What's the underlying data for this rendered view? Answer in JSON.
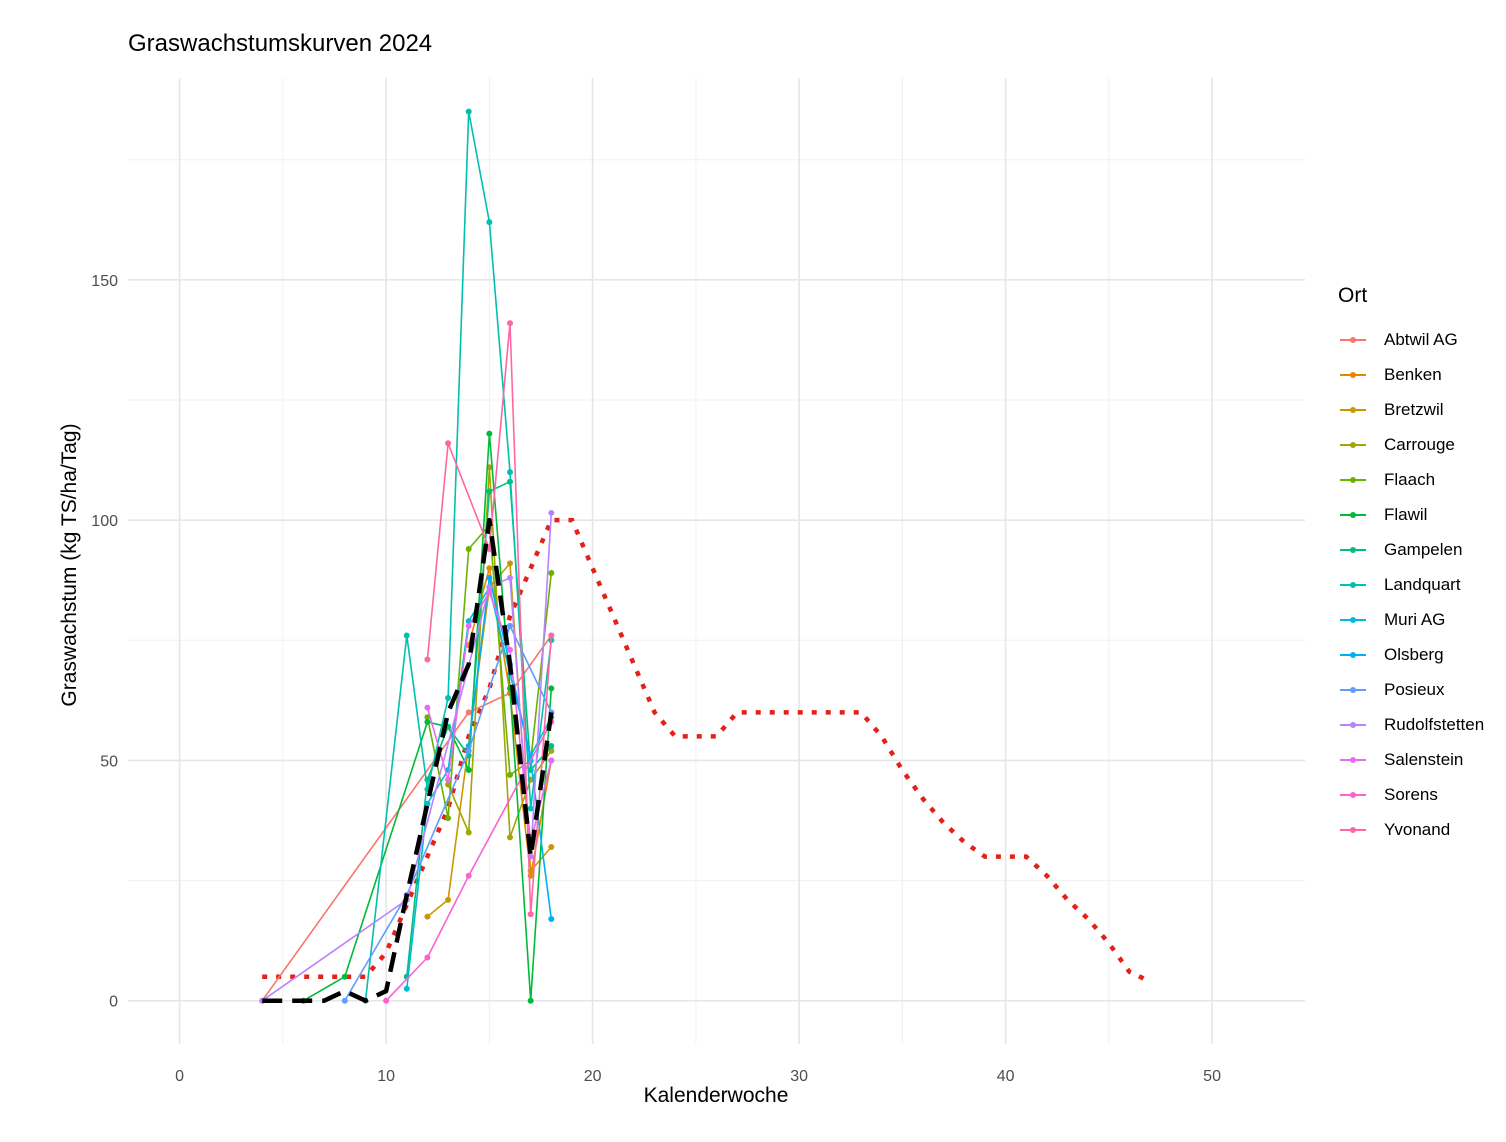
{
  "chart_data": {
    "type": "line",
    "title": "Graswachstumskurven 2024",
    "xlabel": "Kalenderwoche",
    "ylabel": "Graswachstum (kg TS/ha/Tag)",
    "xlim": [
      -2.5,
      54.5
    ],
    "ylim": [
      -9,
      192
    ],
    "x_ticks": [
      0,
      10,
      20,
      30,
      40,
      50
    ],
    "y_ticks": [
      0,
      50,
      100,
      150
    ],
    "grid": true,
    "legend_title": "Ort",
    "legend_position": "right",
    "series": [
      {
        "name": "Abtwil AG",
        "color": "#F8766D",
        "x": [
          4,
          14,
          16,
          18
        ],
        "y": [
          0,
          60,
          64,
          76
        ]
      },
      {
        "name": "Benken",
        "color": "#E58700",
        "x": [
          14,
          15,
          16,
          17,
          18
        ],
        "y": [
          74,
          90,
          64,
          26,
          50
        ]
      },
      {
        "name": "Bretzwil",
        "color": "#C99800",
        "x": [
          12,
          13,
          15,
          16,
          17,
          18
        ],
        "y": [
          17.5,
          21,
          86,
          91,
          27,
          32
        ]
      },
      {
        "name": "Carrouge",
        "color": "#A3A500",
        "x": [
          13,
          14,
          15,
          16,
          17,
          18
        ],
        "y": [
          45,
          35,
          111,
          34,
          46,
          52
        ]
      },
      {
        "name": "Flaach",
        "color": "#6BB100",
        "x": [
          12,
          13,
          14,
          15,
          16,
          17,
          18
        ],
        "y": [
          59,
          38,
          94,
          99,
          47,
          50,
          89
        ]
      },
      {
        "name": "Flawil",
        "color": "#00BA38",
        "x": [
          6,
          8,
          12,
          13,
          14,
          15,
          16,
          17,
          18
        ],
        "y": [
          0,
          5,
          58,
          57,
          48,
          118,
          65,
          0,
          65
        ]
      },
      {
        "name": "Gampelen",
        "color": "#00BF7D",
        "x": [
          11,
          12,
          13,
          14,
          15,
          16,
          17,
          18
        ],
        "y": [
          5,
          46,
          57,
          51,
          106,
          108,
          48,
          53
        ]
      },
      {
        "name": "Landquart",
        "color": "#00C0AF",
        "x": [
          9,
          11,
          12,
          13,
          14,
          15,
          16,
          17,
          18
        ],
        "y": [
          0,
          76,
          44,
          63,
          185,
          162,
          110,
          40,
          75
        ]
      },
      {
        "name": "Muri AG",
        "color": "#00BCD8",
        "x": [
          11,
          12,
          13,
          14,
          15,
          16,
          17,
          18
        ],
        "y": [
          2.5,
          41,
          48,
          79,
          86,
          68,
          51,
          59
        ]
      },
      {
        "name": "Olsberg",
        "color": "#00B0F6",
        "x": [
          14,
          15,
          16,
          17,
          18
        ],
        "y": [
          53,
          88,
          70,
          50,
          17
        ]
      },
      {
        "name": "Posieux",
        "color": "#619CFF",
        "x": [
          8,
          11,
          14,
          16,
          18
        ],
        "y": [
          0,
          22,
          52,
          78,
          60
        ]
      },
      {
        "name": "Rudolfstetten",
        "color": "#B983FF",
        "x": [
          4,
          11,
          15,
          16,
          17,
          18
        ],
        "y": [
          0,
          21,
          86,
          88,
          30,
          101.5
        ]
      },
      {
        "name": "Salenstein",
        "color": "#E76BF3",
        "x": [
          12,
          13,
          14,
          15,
          16,
          17,
          18
        ],
        "y": [
          61,
          46,
          78,
          85,
          73,
          33,
          50
        ]
      },
      {
        "name": "Sorens",
        "color": "#FD61D1",
        "x": [
          10,
          12,
          14,
          18
        ],
        "y": [
          0,
          9,
          26,
          58
        ]
      },
      {
        "name": "Yvonand",
        "color": "#FF67A4",
        "x": [
          12,
          13,
          15,
          16,
          17,
          18
        ],
        "y": [
          71,
          116,
          94,
          141,
          18,
          76
        ]
      }
    ],
    "reference_lines": [
      {
        "style": "black-dashed",
        "color": "#000000",
        "x": [
          4,
          5,
          6,
          7,
          8,
          9,
          10,
          11,
          12,
          13,
          14,
          15,
          16,
          17,
          18
        ],
        "y": [
          0,
          0,
          0,
          0,
          2,
          0,
          2,
          22,
          41,
          60,
          70,
          100,
          70,
          30,
          60
        ]
      },
      {
        "style": "red-dotted",
        "color": "#E32119",
        "x": [
          4,
          5,
          6,
          7,
          8,
          9,
          10,
          11,
          12,
          13,
          14,
          15,
          16,
          17,
          18,
          19,
          20,
          21,
          22,
          23,
          24,
          25,
          26,
          27,
          28,
          29,
          30,
          31,
          32,
          33,
          34,
          35,
          36,
          37,
          38,
          39,
          40,
          41,
          42,
          43,
          44,
          45,
          46,
          47
        ],
        "y": [
          5,
          5,
          5,
          5,
          5,
          5,
          10,
          20,
          30,
          40,
          55,
          65,
          80,
          90,
          100,
          100,
          90,
          80,
          70,
          60,
          55,
          55,
          55,
          60,
          60,
          60,
          60,
          60,
          60,
          60,
          55,
          48,
          42,
          37,
          33,
          30,
          30,
          30,
          26,
          21,
          17,
          12,
          6,
          4
        ]
      }
    ]
  }
}
